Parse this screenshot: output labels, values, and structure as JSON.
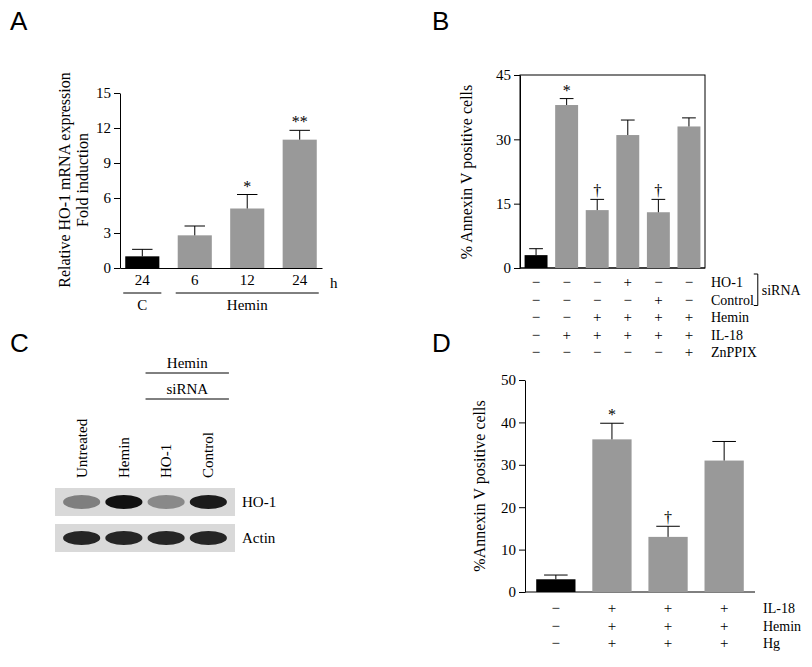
{
  "chart_data": [
    {
      "type": "bar",
      "title": "A",
      "categories": [
        "24",
        "6",
        "12",
        "24"
      ],
      "category_groups": [
        "C",
        "Hemin",
        "Hemin",
        "Hemin"
      ],
      "xlabel": "h",
      "ylabel": [
        "Relative HO-1 mRNA expression",
        "Fold induction"
      ],
      "values": [
        1,
        2.8,
        5.1,
        11
      ],
      "errors": [
        0.6,
        0.8,
        1.2,
        0.8
      ],
      "annotations": [
        null,
        null,
        "*",
        "**"
      ],
      "colors": [
        "#000000",
        "#999999",
        "#999999",
        "#999999"
      ],
      "ylim": [
        0,
        15
      ],
      "yticks": [
        0,
        3,
        6,
        9,
        12,
        15
      ]
    },
    {
      "type": "bar",
      "title": "B",
      "ylabel": "% Annexin V positive cells",
      "values": [
        3,
        38,
        13.5,
        31,
        13,
        33
      ],
      "errors": [
        1.5,
        1.5,
        2.5,
        3.5,
        3,
        2
      ],
      "annotations": [
        null,
        "*",
        "†",
        null,
        "†",
        null
      ],
      "colors": [
        "#000000",
        "#999999",
        "#999999",
        "#999999",
        "#999999",
        "#999999"
      ],
      "ylim": [
        0,
        45
      ],
      "yticks": [
        0,
        15,
        30,
        45
      ],
      "conditions": [
        {
          "label": "HO-1",
          "signs": [
            "−",
            "−",
            "−",
            "+",
            "−",
            "−"
          ]
        },
        {
          "label": "Control",
          "signs": [
            "−",
            "−",
            "−",
            "−",
            "+",
            "−"
          ]
        },
        {
          "label": "Hemin",
          "signs": [
            "−",
            "−",
            "+",
            "+",
            "+",
            "+"
          ]
        },
        {
          "label": "IL-18",
          "signs": [
            "−",
            "+",
            "+",
            "+",
            "+",
            "+"
          ]
        },
        {
          "label": "ZnPPIX",
          "signs": [
            "−",
            "−",
            "−",
            "−",
            "−",
            "+"
          ]
        }
      ],
      "condition_group": {
        "label": "siRNA",
        "members": [
          "HO-1",
          "Control"
        ]
      }
    },
    {
      "type": "bar",
      "title": "D",
      "ylabel": "%Annexin V positive cells",
      "values": [
        3,
        36,
        13,
        31
      ],
      "errors": [
        1,
        3.8,
        2.5,
        4.5
      ],
      "annotations": [
        null,
        "*",
        "†",
        null
      ],
      "colors": [
        "#000000",
        "#999999",
        "#999999",
        "#999999"
      ],
      "ylim": [
        0,
        50
      ],
      "yticks": [
        0,
        10,
        20,
        30,
        40,
        50
      ],
      "conditions": [
        {
          "label": "IL-18",
          "signs": [
            "−",
            "+",
            "+",
            "+"
          ]
        },
        {
          "label": "Hemin",
          "signs": [
            "−",
            "+",
            "+",
            "+"
          ]
        },
        {
          "label": "Hg",
          "signs": [
            "−",
            "+",
            "+",
            "+"
          ]
        }
      ]
    }
  ],
  "blot": {
    "title": "C",
    "lanes": [
      "Untreated",
      "Hemin",
      "HO-1",
      "Control"
    ],
    "group_labels": [
      "Hemin",
      "siRNA"
    ],
    "group_lanes": [
      "HO-1",
      "Control"
    ],
    "rows": [
      {
        "label": "HO-1",
        "bands": [
          0.45,
          1,
          0.4,
          0.95
        ]
      },
      {
        "label": "Actin",
        "bands": [
          0.9,
          0.9,
          0.9,
          0.9
        ]
      }
    ]
  }
}
